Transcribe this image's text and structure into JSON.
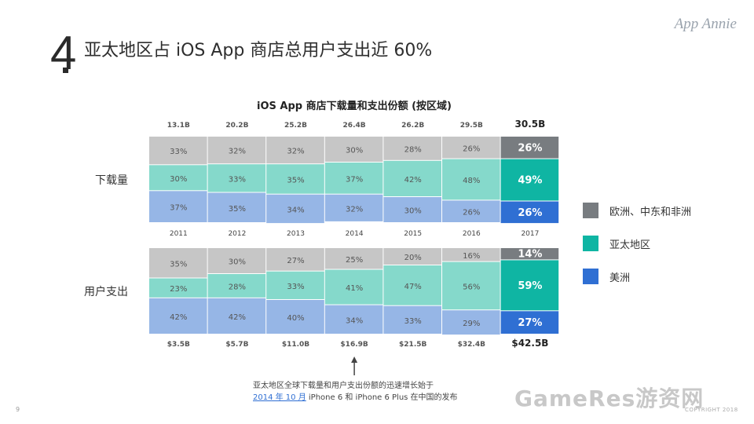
{
  "slide": {
    "number": "4",
    "headline": "亚太地区占 iOS App 商店总用户支出近 60%",
    "logo": "App Annie",
    "page_number": "9",
    "copyright": "COPYRIGHT 2018",
    "watermark": "GameRes游资网"
  },
  "note": {
    "line1": "亚太地区全球下载量和用户支出份额的迅速增长始于",
    "link": "2014 年 10 月",
    "line2_rest": " iPhone 6 和 iPhone 6 Plus 在中国的发布"
  },
  "legend": [
    {
      "label": "欧洲、中东和非洲",
      "color": "#787c80"
    },
    {
      "label": "亚太地区",
      "color": "#0fb5a3"
    },
    {
      "label": "美洲",
      "color": "#2f6fd3"
    }
  ],
  "chart_data": {
    "type": "bar",
    "stacked": "100%",
    "title": "iOS App 商店下载量和支出份额 (按区域)",
    "categories": [
      "2011",
      "2012",
      "2013",
      "2014",
      "2015",
      "2016",
      "2017"
    ],
    "highlight_category": "2017",
    "panels": [
      {
        "label": "下载量",
        "totals": [
          "13.1B",
          "20.2B",
          "25.2B",
          "26.4B",
          "26.2B",
          "29.5B",
          "30.5B"
        ],
        "totals_position": "top",
        "series": [
          {
            "name": "欧洲、中东和非洲",
            "values": [
              33,
              32,
              32,
              30,
              28,
              26,
              26
            ]
          },
          {
            "name": "亚太地区",
            "values": [
              30,
              33,
              35,
              37,
              42,
              48,
              49
            ]
          },
          {
            "name": "美洲",
            "values": [
              37,
              35,
              34,
              32,
              30,
              26,
              26
            ]
          }
        ]
      },
      {
        "label": "用户支出",
        "totals": [
          "$3.5B",
          "$5.7B",
          "$11.0B",
          "$16.9B",
          "$21.5B",
          "$32.4B",
          "$42.5B"
        ],
        "totals_position": "bottom",
        "series": [
          {
            "name": "欧洲、中东和非洲",
            "values": [
              35,
              30,
              27,
              25,
              20,
              16,
              14
            ]
          },
          {
            "name": "亚太地区",
            "values": [
              23,
              28,
              33,
              41,
              47,
              56,
              59
            ]
          },
          {
            "name": "美洲",
            "values": [
              42,
              42,
              40,
              34,
              33,
              29,
              27
            ]
          }
        ]
      }
    ],
    "colors_muted": [
      "#c6c6c6",
      "#85d9cb",
      "#96b6e6"
    ],
    "colors_highlight": [
      "#787c80",
      "#0fb5a3",
      "#2f6fd3"
    ],
    "value_suffix": "%",
    "annotation_arrow_category": "2014"
  }
}
